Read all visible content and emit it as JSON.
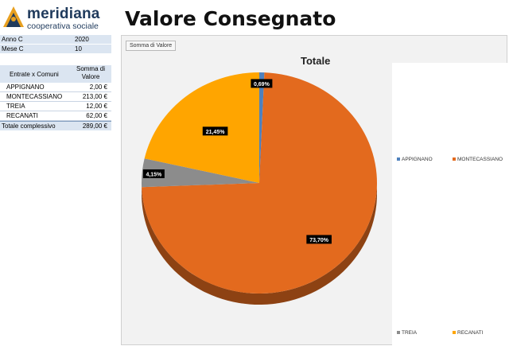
{
  "brand": {
    "name": "meridiana",
    "subtitle": "cooperativa sociale"
  },
  "page_title": "Valore Consegnato",
  "params": [
    {
      "label": "Anno C",
      "value": "2020"
    },
    {
      "label": "Mese C",
      "value": "10"
    }
  ],
  "pivot": {
    "row_header": "Entrate x Comuni",
    "value_header": "Somma di Valore",
    "rows": [
      {
        "name": "APPIGNANO",
        "value": "2,00 €"
      },
      {
        "name": "MONTECASSIANO",
        "value": "213,00 €"
      },
      {
        "name": "TREIA",
        "value": "12,00 €"
      },
      {
        "name": "RECANATI",
        "value": "62,00 €"
      }
    ],
    "total_label": "Totale complessivo",
    "total_value": "289,00 €"
  },
  "chart_field_button": "Somma di Valore",
  "chart_data": {
    "type": "pie",
    "title": "Totale",
    "categories": [
      "APPIGNANO",
      "MONTECASSIANO",
      "TREIA",
      "RECANATI"
    ],
    "values": [
      2,
      213,
      12,
      62
    ],
    "labels": [
      "0,69%",
      "73,70%",
      "4,15%",
      "21,45%"
    ],
    "colors": [
      "#4f81bd",
      "#e36a1e",
      "#8c8c8c",
      "#ffa500"
    ],
    "legend_position": "right"
  }
}
